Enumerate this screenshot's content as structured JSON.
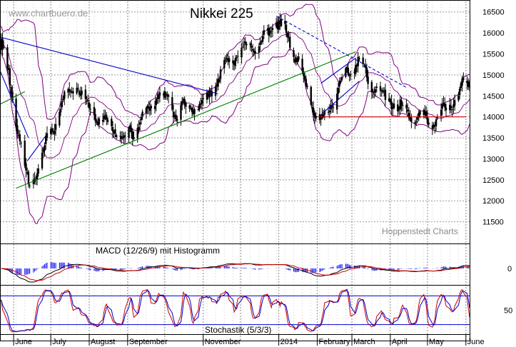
{
  "colors": {
    "grid": "#9a9a9a",
    "frame": "#000000",
    "price_bar": "#000000",
    "bollinger": "#800080",
    "trend_blue": "#0000c8",
    "trend_green": "#008000",
    "support_red": "#d00000",
    "macd_line": "#000000",
    "signal_line": "#d00000",
    "histogram": "#0000ff",
    "stoch_k": "#d00000",
    "stoch_d": "#0000cc",
    "stoch_levels": "#0000cc",
    "watermark": "#9a9a9a"
  },
  "header": {
    "watermark": "www.chartbuero.de",
    "title": "Nikkei 225"
  },
  "credit": "Hoppenstedt Charts",
  "chart_data": [
    {
      "type": "candlestick",
      "panel": "price",
      "title": "Nikkei 225",
      "ylim": [
        11000,
        16750
      ],
      "yticks": [
        11500,
        12000,
        12500,
        13000,
        13500,
        14000,
        14500,
        15000,
        15500,
        16000,
        16500
      ],
      "x_labels": [
        "June",
        "July",
        "August",
        "September",
        "November",
        "2014",
        "February",
        "March",
        "April",
        "May",
        "June"
      ],
      "grid": true,
      "series": [
        {
          "name": "Index",
          "kind": "ohlc",
          "anchor_dates": [
            "2013-05-22",
            "2013-06-13",
            "2013-07-22",
            "2013-08-28",
            "2013-09-26",
            "2013-10-10",
            "2013-12-30",
            "2014-02-04",
            "2014-03-07",
            "2014-04-14",
            "2014-05-22",
            "2014-06-05"
          ],
          "anchor_close": [
            15600,
            12500,
            14800,
            13300,
            14700,
            13900,
            16300,
            14000,
            15300,
            13900,
            14300,
            14700
          ]
        },
        {
          "name": "Bollinger Bands",
          "kind": "band"
        },
        {
          "name": "Trendlines",
          "kind": "lines"
        }
      ],
      "support_level": 14000
    },
    {
      "type": "line",
      "panel": "macd",
      "title": "MACD (12/26/9) mit Histogramm",
      "yticks": [
        0
      ],
      "series": [
        {
          "name": "MACD",
          "kind": "line"
        },
        {
          "name": "Signal",
          "kind": "line"
        },
        {
          "name": "Histogramm",
          "kind": "histogram"
        }
      ]
    },
    {
      "type": "line",
      "panel": "stochastic",
      "title": "Stochastik (5/3/3)",
      "ylim": [
        0,
        100
      ],
      "yticks": [
        50
      ],
      "levels": [
        20,
        80
      ],
      "series": [
        {
          "name": "%K",
          "kind": "line"
        },
        {
          "name": "%D",
          "kind": "line"
        }
      ]
    }
  ]
}
